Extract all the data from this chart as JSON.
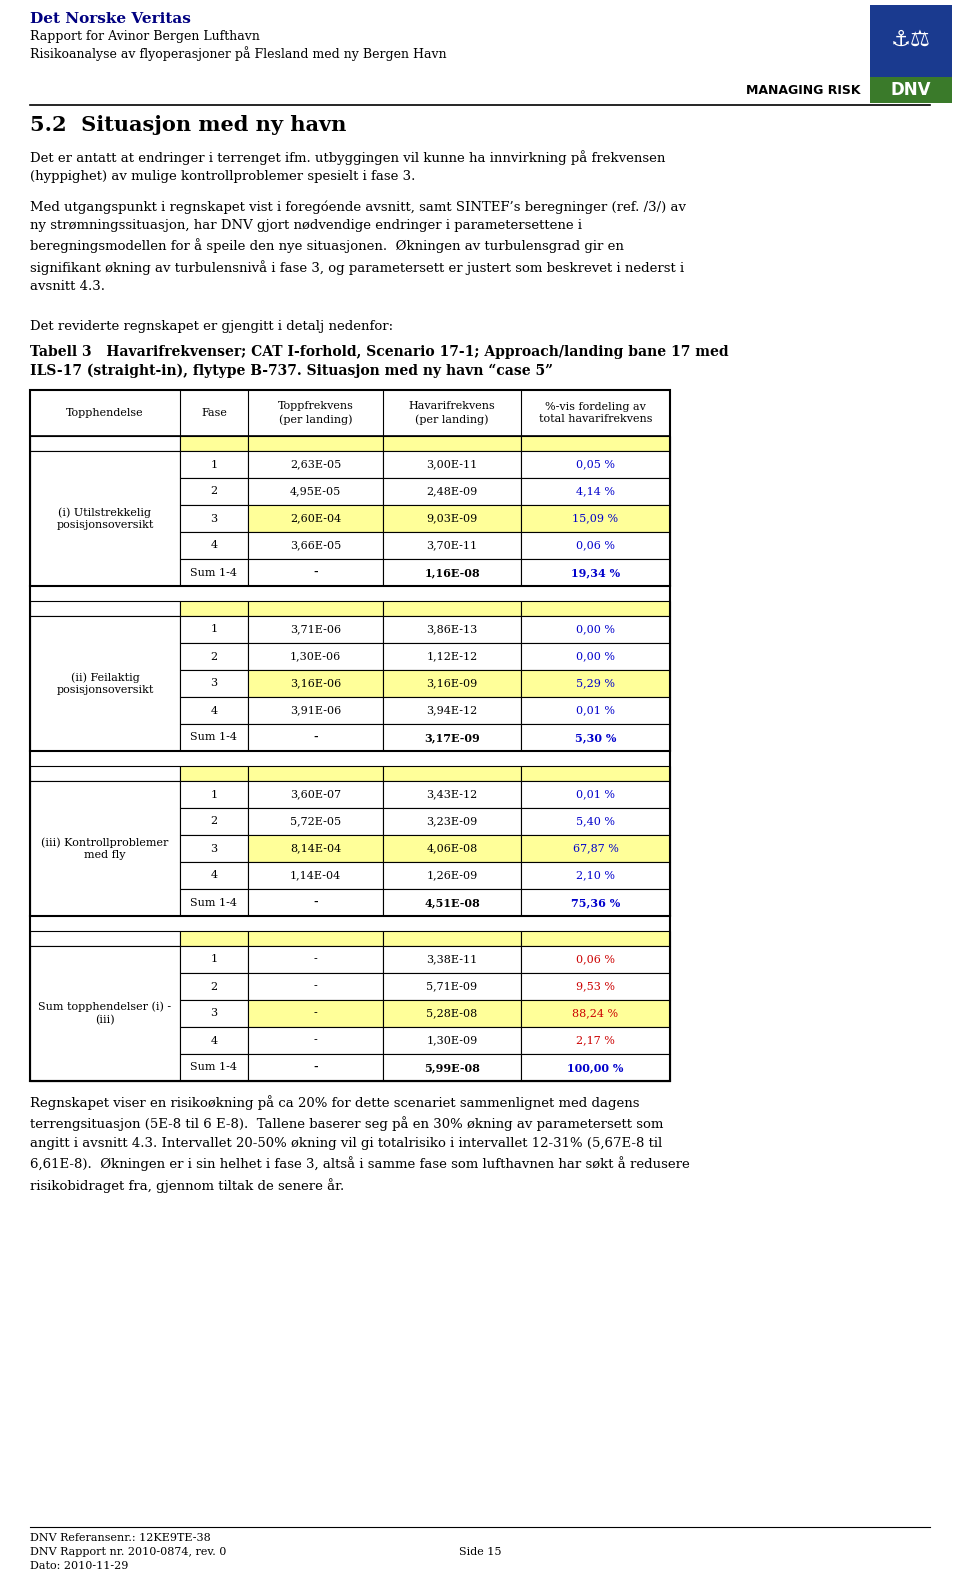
{
  "header_line1": "Det Norske Veritas",
  "header_line2": "Rapport for Avinor Bergen Lufthavn",
  "header_line3": "Risikoanalyse av flyoperasjoner på Flesland med ny Bergen Havn",
  "managing_risk_text": "MANAGING RISK",
  "section_title": "5.2  Situasjon med ny havn",
  "para1": "Det er antatt at endringer i terrenget ifm. utbyggingen vil kunne ha innvirkning på frekvensen\n(hyppighet) av mulige kontrollproblemer spesielt i fase 3.",
  "para2": "Med utgangspunkt i regnskapet vist i foregóende avsnitt, samt SINTEF’s beregninger (ref. /3/) av\nny strømningssituasjon, har DNV gjort nødvendige endringer i parametersettene i\nberegningsmodellen for å speile den nye situasjonen.  Økningen av turbulensgrad gir en\nsignifikant økning av turbulensnivå i fase 3, og parametersett er justert som beskrevet i nederst i\navsnitt 4.3.",
  "para3": "Det reviderte regnskapet er gjengitt i detalj nedenfor:",
  "table_title_bold": "Tabell 3   Havarifrekvenser; CAT I-forhold, Scenario 17-1; Approach/landing bane 17 med\nILS-17 (straight-in), flytype B-737. Situasjon med ny havn “case 5”",
  "col_headers": [
    "Topphendelse",
    "Fase",
    "Toppfrekvens\n(per landing)",
    "Havarifrekvens\n(per landing)",
    "%-vis fordeling av\ntotal havarifrekvens"
  ],
  "sections": [
    {
      "name": "(i) Utilstrekkelig\nposisjonsoversikt",
      "rows": [
        {
          "fase": "1",
          "topp": "2,63E-05",
          "hav": "3,00E-11",
          "pct": "0,05 %",
          "highlight": false
        },
        {
          "fase": "2",
          "topp": "4,95E-05",
          "hav": "2,48E-09",
          "pct": "4,14 %",
          "highlight": false
        },
        {
          "fase": "3",
          "topp": "2,60E-04",
          "hav": "9,03E-09",
          "pct": "15,09 %",
          "highlight": true
        },
        {
          "fase": "4",
          "topp": "3,66E-05",
          "hav": "3,70E-11",
          "pct": "0,06 %",
          "highlight": false
        },
        {
          "fase": "Sum 1-4",
          "topp": "-",
          "hav": "1,16E-08",
          "pct": "19,34 %",
          "highlight": false,
          "sum": true
        }
      ]
    },
    {
      "name": "(ii) Feilaktig\nposisjonsoversikt",
      "rows": [
        {
          "fase": "1",
          "topp": "3,71E-06",
          "hav": "3,86E-13",
          "pct": "0,00 %",
          "highlight": false
        },
        {
          "fase": "2",
          "topp": "1,30E-06",
          "hav": "1,12E-12",
          "pct": "0,00 %",
          "highlight": false
        },
        {
          "fase": "3",
          "topp": "3,16E-06",
          "hav": "3,16E-09",
          "pct": "5,29 %",
          "highlight": true
        },
        {
          "fase": "4",
          "topp": "3,91E-06",
          "hav": "3,94E-12",
          "pct": "0,01 %",
          "highlight": false
        },
        {
          "fase": "Sum 1-4",
          "topp": "-",
          "hav": "3,17E-09",
          "pct": "5,30 %",
          "highlight": false,
          "sum": true
        }
      ]
    },
    {
      "name": "(iii) Kontrollproblemer\nmed fly",
      "rows": [
        {
          "fase": "1",
          "topp": "3,60E-07",
          "hav": "3,43E-12",
          "pct": "0,01 %",
          "highlight": false
        },
        {
          "fase": "2",
          "topp": "5,72E-05",
          "hav": "3,23E-09",
          "pct": "5,40 %",
          "highlight": false
        },
        {
          "fase": "3",
          "topp": "8,14E-04",
          "hav": "4,06E-08",
          "pct": "67,87 %",
          "highlight": true
        },
        {
          "fase": "4",
          "topp": "1,14E-04",
          "hav": "1,26E-09",
          "pct": "2,10 %",
          "highlight": false
        },
        {
          "fase": "Sum 1-4",
          "topp": "-",
          "hav": "4,51E-08",
          "pct": "75,36 %",
          "highlight": false,
          "sum": true
        }
      ]
    },
    {
      "name": "Sum topphendelser (i) -\n(iii)",
      "rows": [
        {
          "fase": "1",
          "topp": "-",
          "hav": "3,38E-11",
          "pct": "0,06 %",
          "highlight": false,
          "pct_red": true
        },
        {
          "fase": "2",
          "topp": "-",
          "hav": "5,71E-09",
          "pct": "9,53 %",
          "highlight": false,
          "pct_red": true
        },
        {
          "fase": "3",
          "topp": "-",
          "hav": "5,28E-08",
          "pct": "88,24 %",
          "highlight": true,
          "pct_red": true
        },
        {
          "fase": "4",
          "topp": "-",
          "hav": "1,30E-09",
          "pct": "2,17 %",
          "highlight": false,
          "pct_red": true
        },
        {
          "fase": "Sum 1-4",
          "topp": "-",
          "hav": "5,99E-08",
          "pct": "100,00 %",
          "highlight": false,
          "sum": true,
          "pct_blue": true
        }
      ]
    }
  ],
  "para_after": "Regnskapet viser en risikoøkning på ca 20% for dette scenariet sammenlignet med dagens\nterrengsituasjon (5E-8 til 6 E-8).  Tallene baserer seg på en 30% økning av parametersett som\nangitt i avsnitt 4.3. Intervallet 20-50% økning vil gi totalrisiko i intervallet 12-31% (5,67E-8 til\n6,61E-8).  Økningen er i sin helhet i fase 3, altså i samme fase som lufthavnen har søkt å redusere\nrisikobidraget fra, gjennom tiltak de senere år.",
  "footer1": "DNV Referansenr.: 12KE9TE-38",
  "footer2": "DNV Rapport nr. 2010-0874, rev. 0",
  "footer3": "Dato: 2010-11-29",
  "footer4": "Side 15",
  "yellow": "#FFFF99",
  "blue_text": "#0000CC",
  "red_text": "#CC0000",
  "black_text": "#000000",
  "header_dark_blue": "#000080",
  "dnv_blue": "#1a3399",
  "dnv_green": "#336633"
}
